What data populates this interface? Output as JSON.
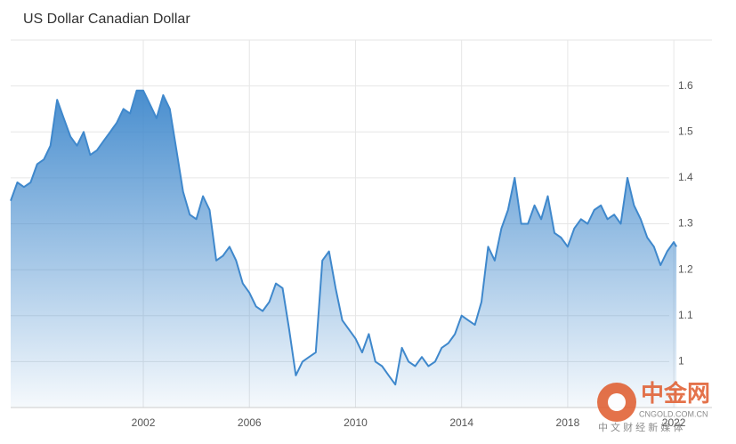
{
  "chart_data": {
    "type": "area",
    "title": "US Dollar Canadian Dollar",
    "color": "#3f88cc",
    "x": [
      1997.0,
      1997.25,
      1997.5,
      1997.75,
      1998.0,
      1998.25,
      1998.5,
      1998.75,
      1999.0,
      1999.25,
      1999.5,
      1999.75,
      2000.0,
      2000.25,
      2000.5,
      2000.75,
      2001.0,
      2001.25,
      2001.5,
      2001.75,
      2002.0,
      2002.25,
      2002.5,
      2002.75,
      2003.0,
      2003.25,
      2003.5,
      2003.75,
      2004.0,
      2004.25,
      2004.5,
      2004.75,
      2005.0,
      2005.25,
      2005.5,
      2005.75,
      2006.0,
      2006.25,
      2006.5,
      2006.75,
      2007.0,
      2007.25,
      2007.5,
      2007.75,
      2008.0,
      2008.25,
      2008.5,
      2008.75,
      2009.0,
      2009.25,
      2009.5,
      2009.75,
      2010.0,
      2010.25,
      2010.5,
      2010.75,
      2011.0,
      2011.25,
      2011.5,
      2011.75,
      2012.0,
      2012.25,
      2012.5,
      2012.75,
      2013.0,
      2013.25,
      2013.5,
      2013.75,
      2014.0,
      2014.25,
      2014.5,
      2014.75,
      2015.0,
      2015.25,
      2015.5,
      2015.75,
      2016.0,
      2016.25,
      2016.5,
      2016.75,
      2017.0,
      2017.25,
      2017.5,
      2017.75,
      2018.0,
      2018.25,
      2018.5,
      2018.75,
      2019.0,
      2019.25,
      2019.5,
      2019.75,
      2020.0,
      2020.25,
      2020.5,
      2020.75,
      2021.0,
      2021.25,
      2021.5,
      2021.75,
      2022.0,
      2022.1
    ],
    "values": [
      1.35,
      1.39,
      1.38,
      1.39,
      1.43,
      1.44,
      1.47,
      1.57,
      1.53,
      1.49,
      1.47,
      1.5,
      1.45,
      1.46,
      1.48,
      1.5,
      1.52,
      1.55,
      1.54,
      1.59,
      1.59,
      1.56,
      1.53,
      1.58,
      1.55,
      1.46,
      1.37,
      1.32,
      1.31,
      1.36,
      1.33,
      1.22,
      1.23,
      1.25,
      1.22,
      1.17,
      1.15,
      1.12,
      1.11,
      1.13,
      1.17,
      1.16,
      1.07,
      0.97,
      1.0,
      1.01,
      1.02,
      1.22,
      1.24,
      1.16,
      1.09,
      1.07,
      1.05,
      1.02,
      1.06,
      1.0,
      0.99,
      0.97,
      0.95,
      1.03,
      1.0,
      0.99,
      1.01,
      0.99,
      1.0,
      1.03,
      1.04,
      1.06,
      1.1,
      1.09,
      1.08,
      1.13,
      1.25,
      1.22,
      1.29,
      1.33,
      1.4,
      1.3,
      1.3,
      1.34,
      1.31,
      1.36,
      1.28,
      1.27,
      1.25,
      1.29,
      1.31,
      1.3,
      1.33,
      1.34,
      1.31,
      1.32,
      1.3,
      1.4,
      1.34,
      1.31,
      1.27,
      1.25,
      1.21,
      1.24,
      1.26,
      1.25
    ],
    "xlim": [
      1997,
      2022.6
    ],
    "xticks": [
      2002,
      2006,
      2010,
      2014,
      2018,
      2022
    ],
    "ylim": [
      0.9,
      1.7
    ],
    "yticks": [
      1,
      1.1,
      1.2,
      1.3,
      1.4,
      1.5,
      1.6
    ],
    "grid": true
  },
  "watermark": {
    "name": "中金网",
    "url": "CNGOLD.COM.CN",
    "tagline": "中 文 财 经 新 媒 体"
  }
}
